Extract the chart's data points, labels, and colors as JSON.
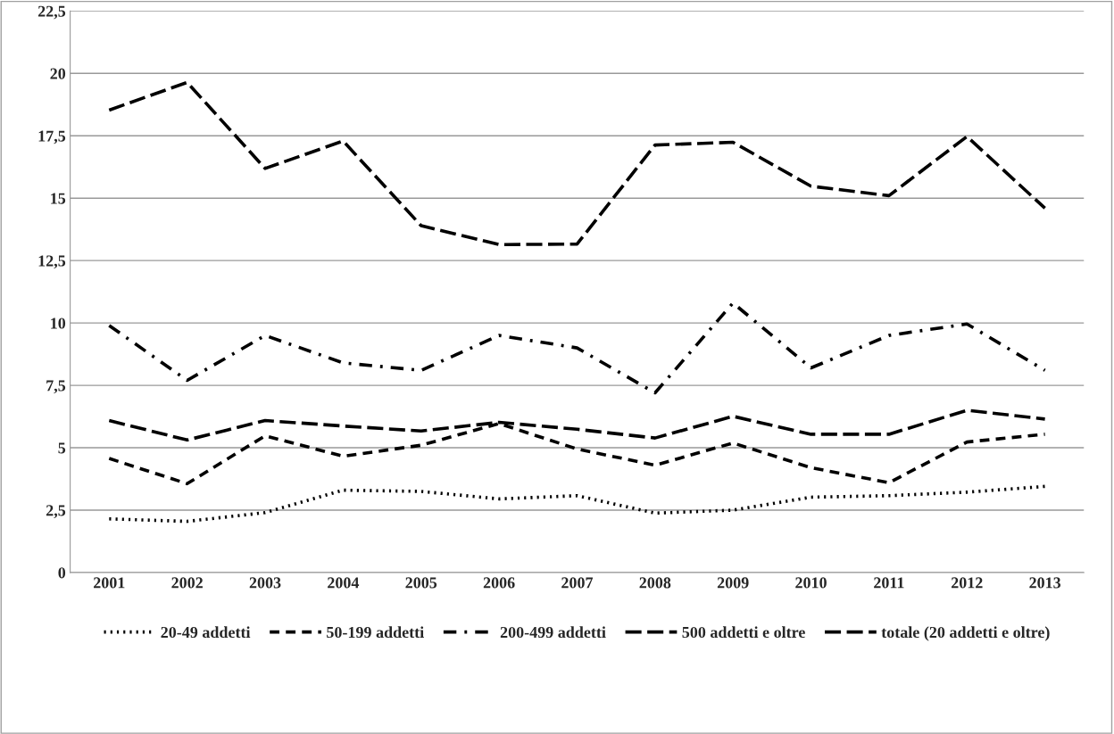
{
  "chart_data": {
    "type": "line",
    "categories": [
      "2001",
      "2002",
      "2003",
      "2004",
      "2005",
      "2006",
      "2007",
      "2008",
      "2009",
      "2010",
      "2011",
      "2012",
      "2013"
    ],
    "series": [
      {
        "name": "20-49 addetti",
        "color": "#000000",
        "line_style": "dotted",
        "values": [
          2.15,
          2.05,
          2.4,
          3.3,
          3.25,
          2.95,
          3.08,
          2.38,
          2.5,
          3.02,
          3.08,
          3.22,
          3.45
        ]
      },
      {
        "name": "50-199 addetti",
        "color": "#000000",
        "line_style": "dashed",
        "values": [
          4.57,
          3.56,
          5.48,
          4.66,
          5.1,
          5.97,
          4.95,
          4.3,
          5.19,
          4.2,
          3.6,
          5.23,
          5.54
        ]
      },
      {
        "name": "200-499 addetti",
        "color": "#000000",
        "line_style": "dashdot",
        "values": [
          9.9,
          7.7,
          9.5,
          8.4,
          8.1,
          9.5,
          9.0,
          7.2,
          10.8,
          8.2,
          9.5,
          9.96,
          8.1
        ]
      },
      {
        "name": "500 addetti e oltre",
        "color": "#000000",
        "line_style": "longdash",
        "values": [
          18.53,
          19.64,
          16.19,
          17.29,
          13.9,
          13.14,
          13.16,
          17.13,
          17.24,
          15.48,
          15.1,
          17.47,
          14.6
        ]
      },
      {
        "name": "totale (20 addetti e oltre)",
        "color": "#000000",
        "line_style": "longdash",
        "values": [
          6.09,
          5.31,
          6.09,
          5.87,
          5.67,
          6.02,
          5.74,
          5.39,
          6.26,
          5.54,
          5.54,
          6.5,
          6.15
        ]
      }
    ],
    "ylim": [
      0,
      22.5
    ],
    "yticks": [
      0,
      {
        "value": 2.5,
        "label": "2,5"
      },
      5,
      {
        "value": 7.5,
        "label": "7,5"
      },
      10,
      {
        "value": 12.5,
        "label": "12,5"
      },
      15,
      {
        "value": 17.5,
        "label": "17,5"
      },
      20,
      {
        "value": 22.5,
        "label": "22,5"
      }
    ],
    "grid": "y",
    "legend": "bottom",
    "marker": "none"
  }
}
